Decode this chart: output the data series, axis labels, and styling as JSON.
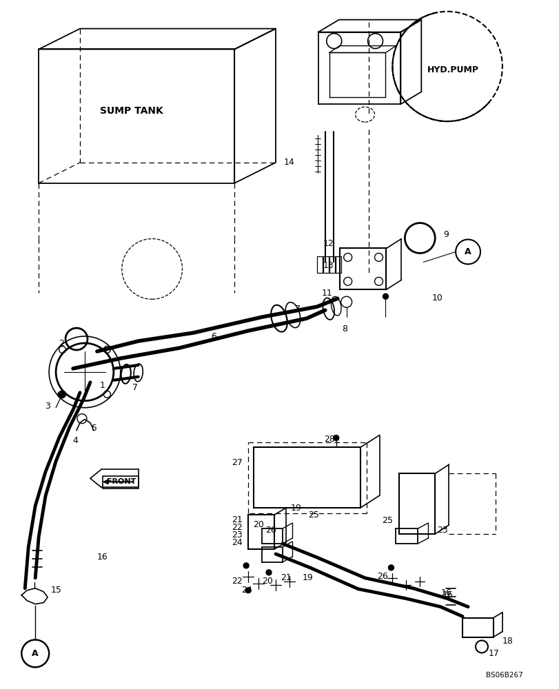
{
  "bg_color": "#ffffff",
  "lc": "#000000",
  "watermark": "BS06B267",
  "sump_tank_label": "SUMP TANK",
  "hyd_pump_label": "HYD.PUMP",
  "front_label": "FRONT"
}
